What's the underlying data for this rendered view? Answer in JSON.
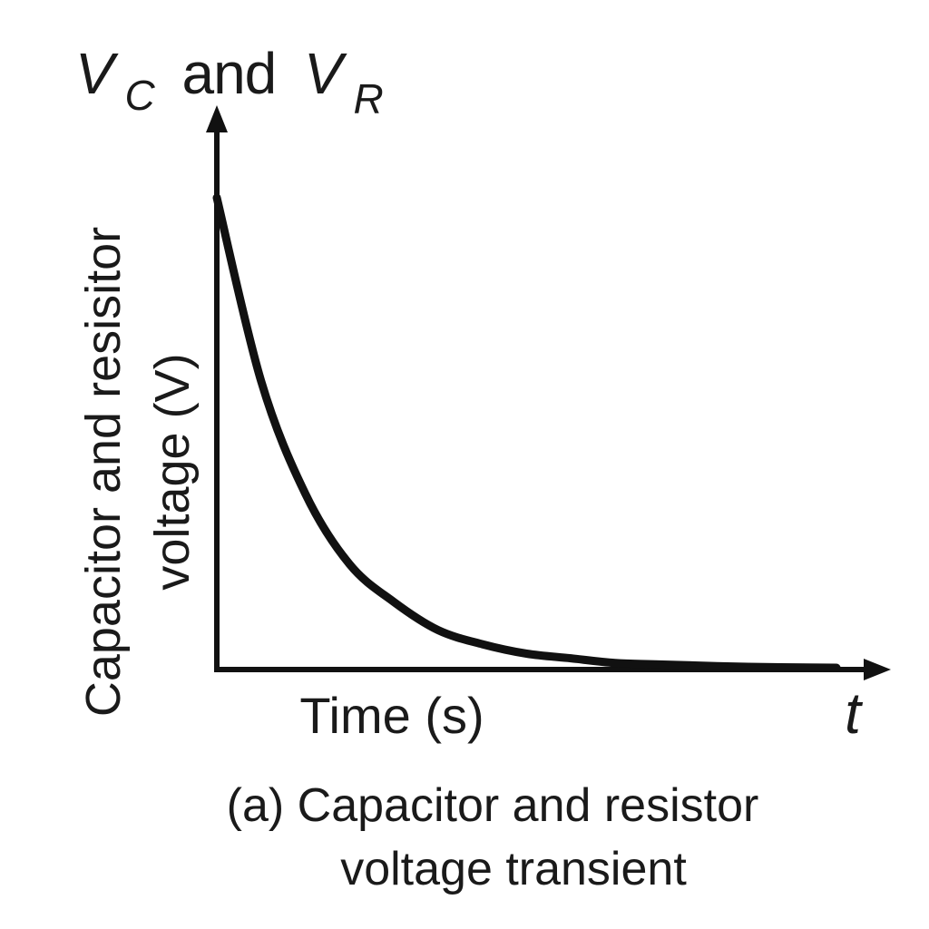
{
  "chart_data": {
    "type": "line",
    "y_axis_symbol": {
      "main1": "V",
      "sub1": "C",
      "joiner": "and",
      "main2": "V",
      "sub2": "R"
    },
    "ylabel_line1": "Capacitor and resisitor",
    "ylabel_line2": "voltage (V)",
    "xlabel": "Time (s)",
    "x_axis_symbol": "t",
    "caption_line1": "(a) Capacitor and resistor",
    "caption_line2": "voltage transient",
    "series": [
      {
        "curve": "exponential decay",
        "x": [
          0,
          0.5,
          1,
          1.5,
          2,
          2.5,
          3,
          3.5,
          4,
          4.5,
          5,
          6,
          7
        ],
        "y": [
          1.0,
          0.61,
          0.37,
          0.22,
          0.14,
          0.08,
          0.05,
          0.03,
          0.02,
          0.01,
          0.007,
          0.002,
          0.0
        ]
      }
    ],
    "xlim": [
      0,
      7.5
    ],
    "ylim": [
      0,
      1.0
    ],
    "ticks": false,
    "grid": false,
    "legend": "none",
    "colors": {
      "line": "#111111",
      "axes": "#111111",
      "text": "#1a1a1a"
    }
  }
}
